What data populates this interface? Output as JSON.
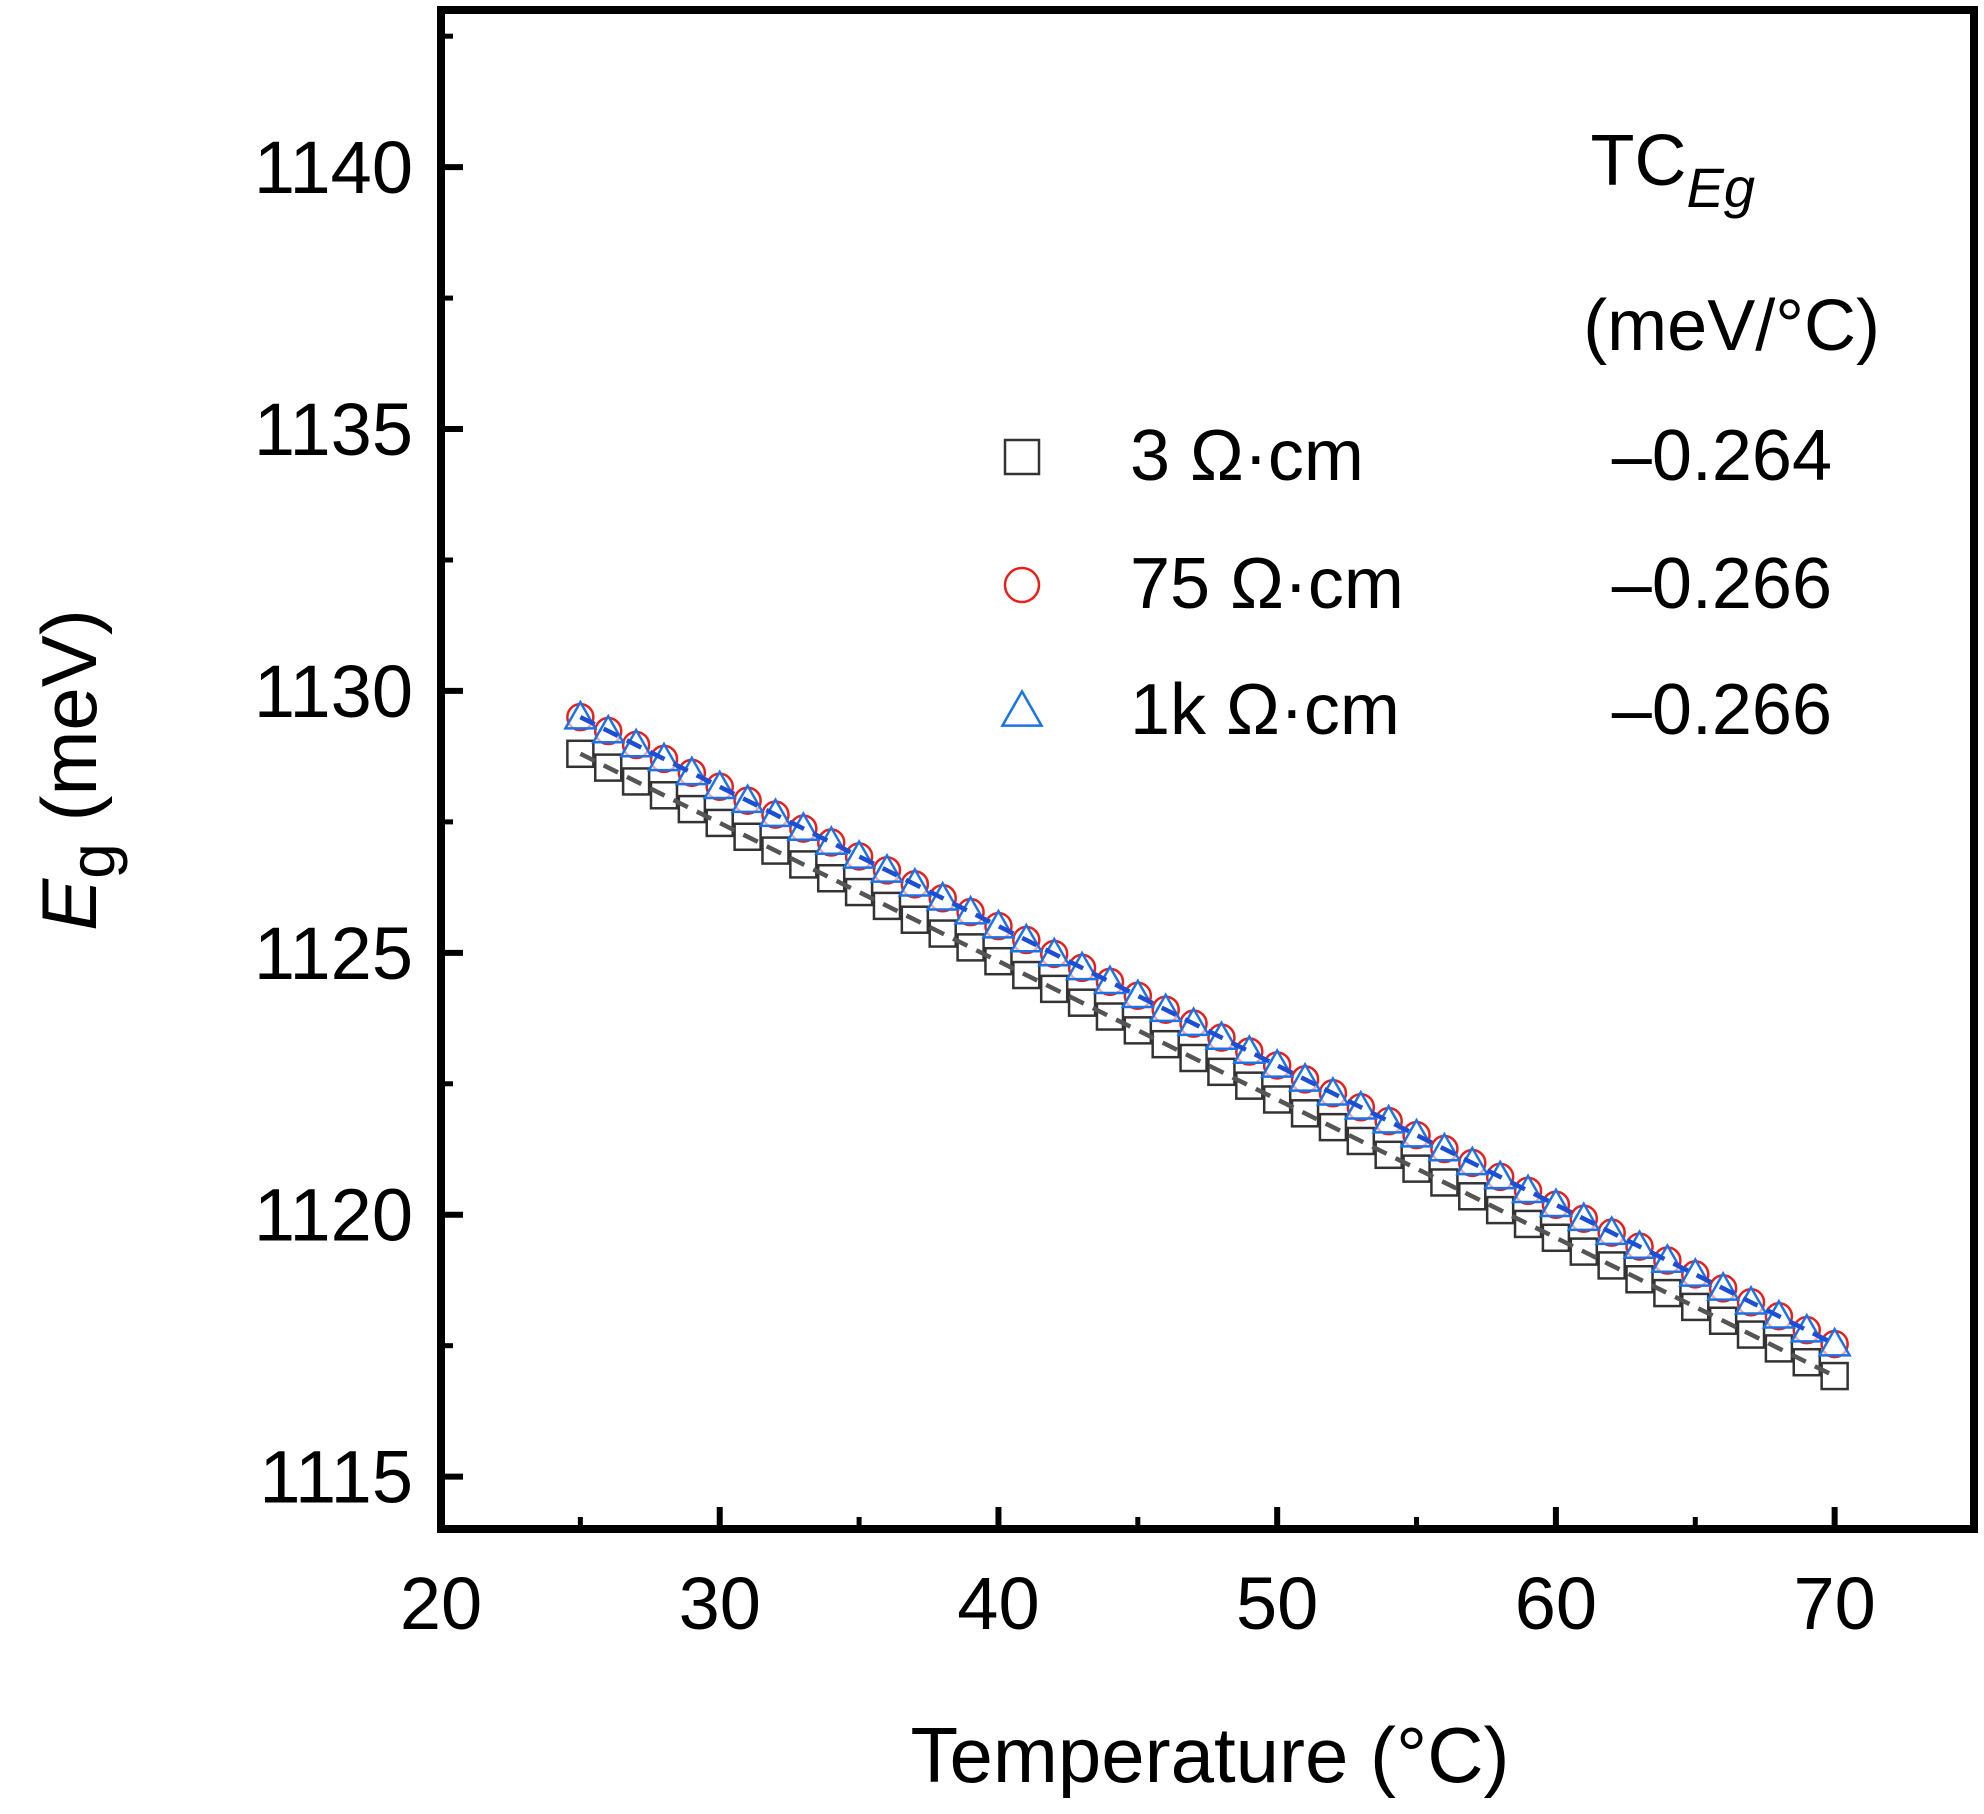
{
  "chart_data": {
    "type": "scatter",
    "xlabel": "Temperature (°C)",
    "ylabel_symbol": "E",
    "ylabel_subscript": "g",
    "ylabel_unit": " (meV)",
    "xlim": [
      20,
      75
    ],
    "ylim": [
      1114,
      1143
    ],
    "x_ticks": [
      20,
      30,
      40,
      50,
      60,
      70
    ],
    "y_ticks": [
      1115,
      1120,
      1125,
      1130,
      1135,
      1140
    ],
    "grid": false,
    "legend_placement": "top-right",
    "legend_header": {
      "main": "TC",
      "subscript": "Eg",
      "unit": "(meV/°C)"
    },
    "series": [
      {
        "name": "3 Ω·cm",
        "tc": "–0.264",
        "marker": "square",
        "color": "#333333",
        "fit_color": "#555555",
        "x_start": 25,
        "x_end": 70,
        "x_step": 1,
        "y_start": 1128.8,
        "slope": -0.264
      },
      {
        "name": "75 Ω·cm",
        "tc": "–0.266",
        "marker": "circle",
        "color": "#e8201a",
        "fit_color": "#e8201a",
        "x_start": 25,
        "x_end": 70,
        "x_step": 1,
        "y_start": 1129.5,
        "slope": -0.266
      },
      {
        "name": "1k Ω·cm",
        "tc": "–0.266",
        "marker": "triangle",
        "color": "#1a73e8",
        "fit_color": "#1a4fd6",
        "x_start": 25,
        "x_end": 70,
        "x_step": 1,
        "y_start": 1129.5,
        "slope": -0.266
      }
    ]
  }
}
